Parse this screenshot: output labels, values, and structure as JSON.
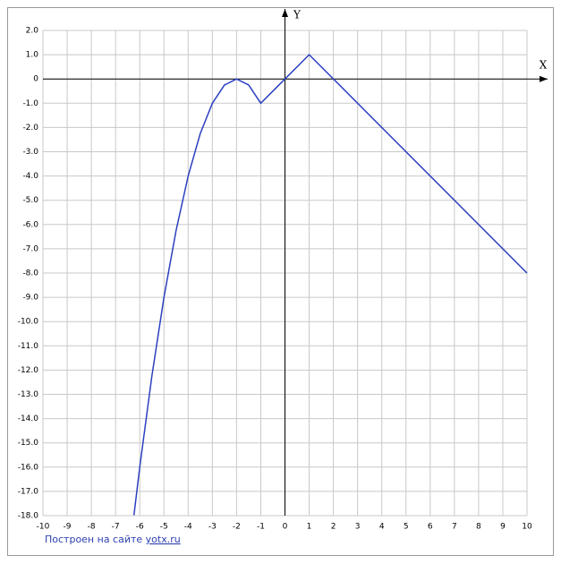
{
  "chart_data": {
    "type": "line",
    "x_label": "X",
    "y_label": "Y",
    "x": [
      -6.24,
      -6,
      -5.5,
      -5,
      -4.5,
      -4,
      -3.5,
      -3,
      -2.5,
      -2,
      -1.5,
      -1,
      0,
      1,
      10
    ],
    "series": [
      {
        "color": "#2b3fbf",
        "values": [
          -17.98,
          -16,
          -12.25,
          -9,
          -6.25,
          -4,
          -2.25,
          -1,
          -0.25,
          0,
          -0.25,
          -1,
          0,
          1,
          -8
        ]
      }
    ],
    "xlim": [
      -10,
      10
    ],
    "ylim": [
      -18,
      2
    ],
    "xticks": [
      -10,
      -9,
      -8,
      -7,
      -6,
      -5,
      -4,
      -3,
      -2,
      -1,
      0,
      1,
      2,
      3,
      4,
      5,
      6,
      7,
      8,
      9,
      10
    ],
    "yticks": [
      {
        "value": 2,
        "label": "2.0"
      },
      {
        "value": 1,
        "label": "1.0"
      },
      0,
      {
        "value": -1,
        "label": "-1.0"
      },
      {
        "value": -2,
        "label": "-2.0"
      },
      {
        "value": -3,
        "label": "-3.0"
      },
      {
        "value": -4,
        "label": "-4.0"
      },
      {
        "value": -5,
        "label": "-5.0"
      },
      {
        "value": -6,
        "label": "-6.0"
      },
      {
        "value": -7,
        "label": "-7.0"
      },
      {
        "value": -8,
        "label": "-8.0"
      },
      {
        "value": -9,
        "label": "-9.0"
      },
      {
        "value": -10,
        "label": "-10.0"
      },
      {
        "value": -11,
        "label": "-11.0"
      },
      {
        "value": -12,
        "label": "-12.0"
      },
      {
        "value": -13,
        "label": "-13.0"
      },
      {
        "value": -14,
        "label": "-14.0"
      },
      {
        "value": -15,
        "label": "-15.0"
      },
      {
        "value": -16,
        "label": "-16.0"
      },
      {
        "value": -17,
        "label": "-17.0"
      },
      {
        "value": -18,
        "label": "-18.0"
      }
    ],
    "grid": true,
    "footer": {
      "text": "Построен на сайте",
      "link": "yotx.ru"
    }
  }
}
